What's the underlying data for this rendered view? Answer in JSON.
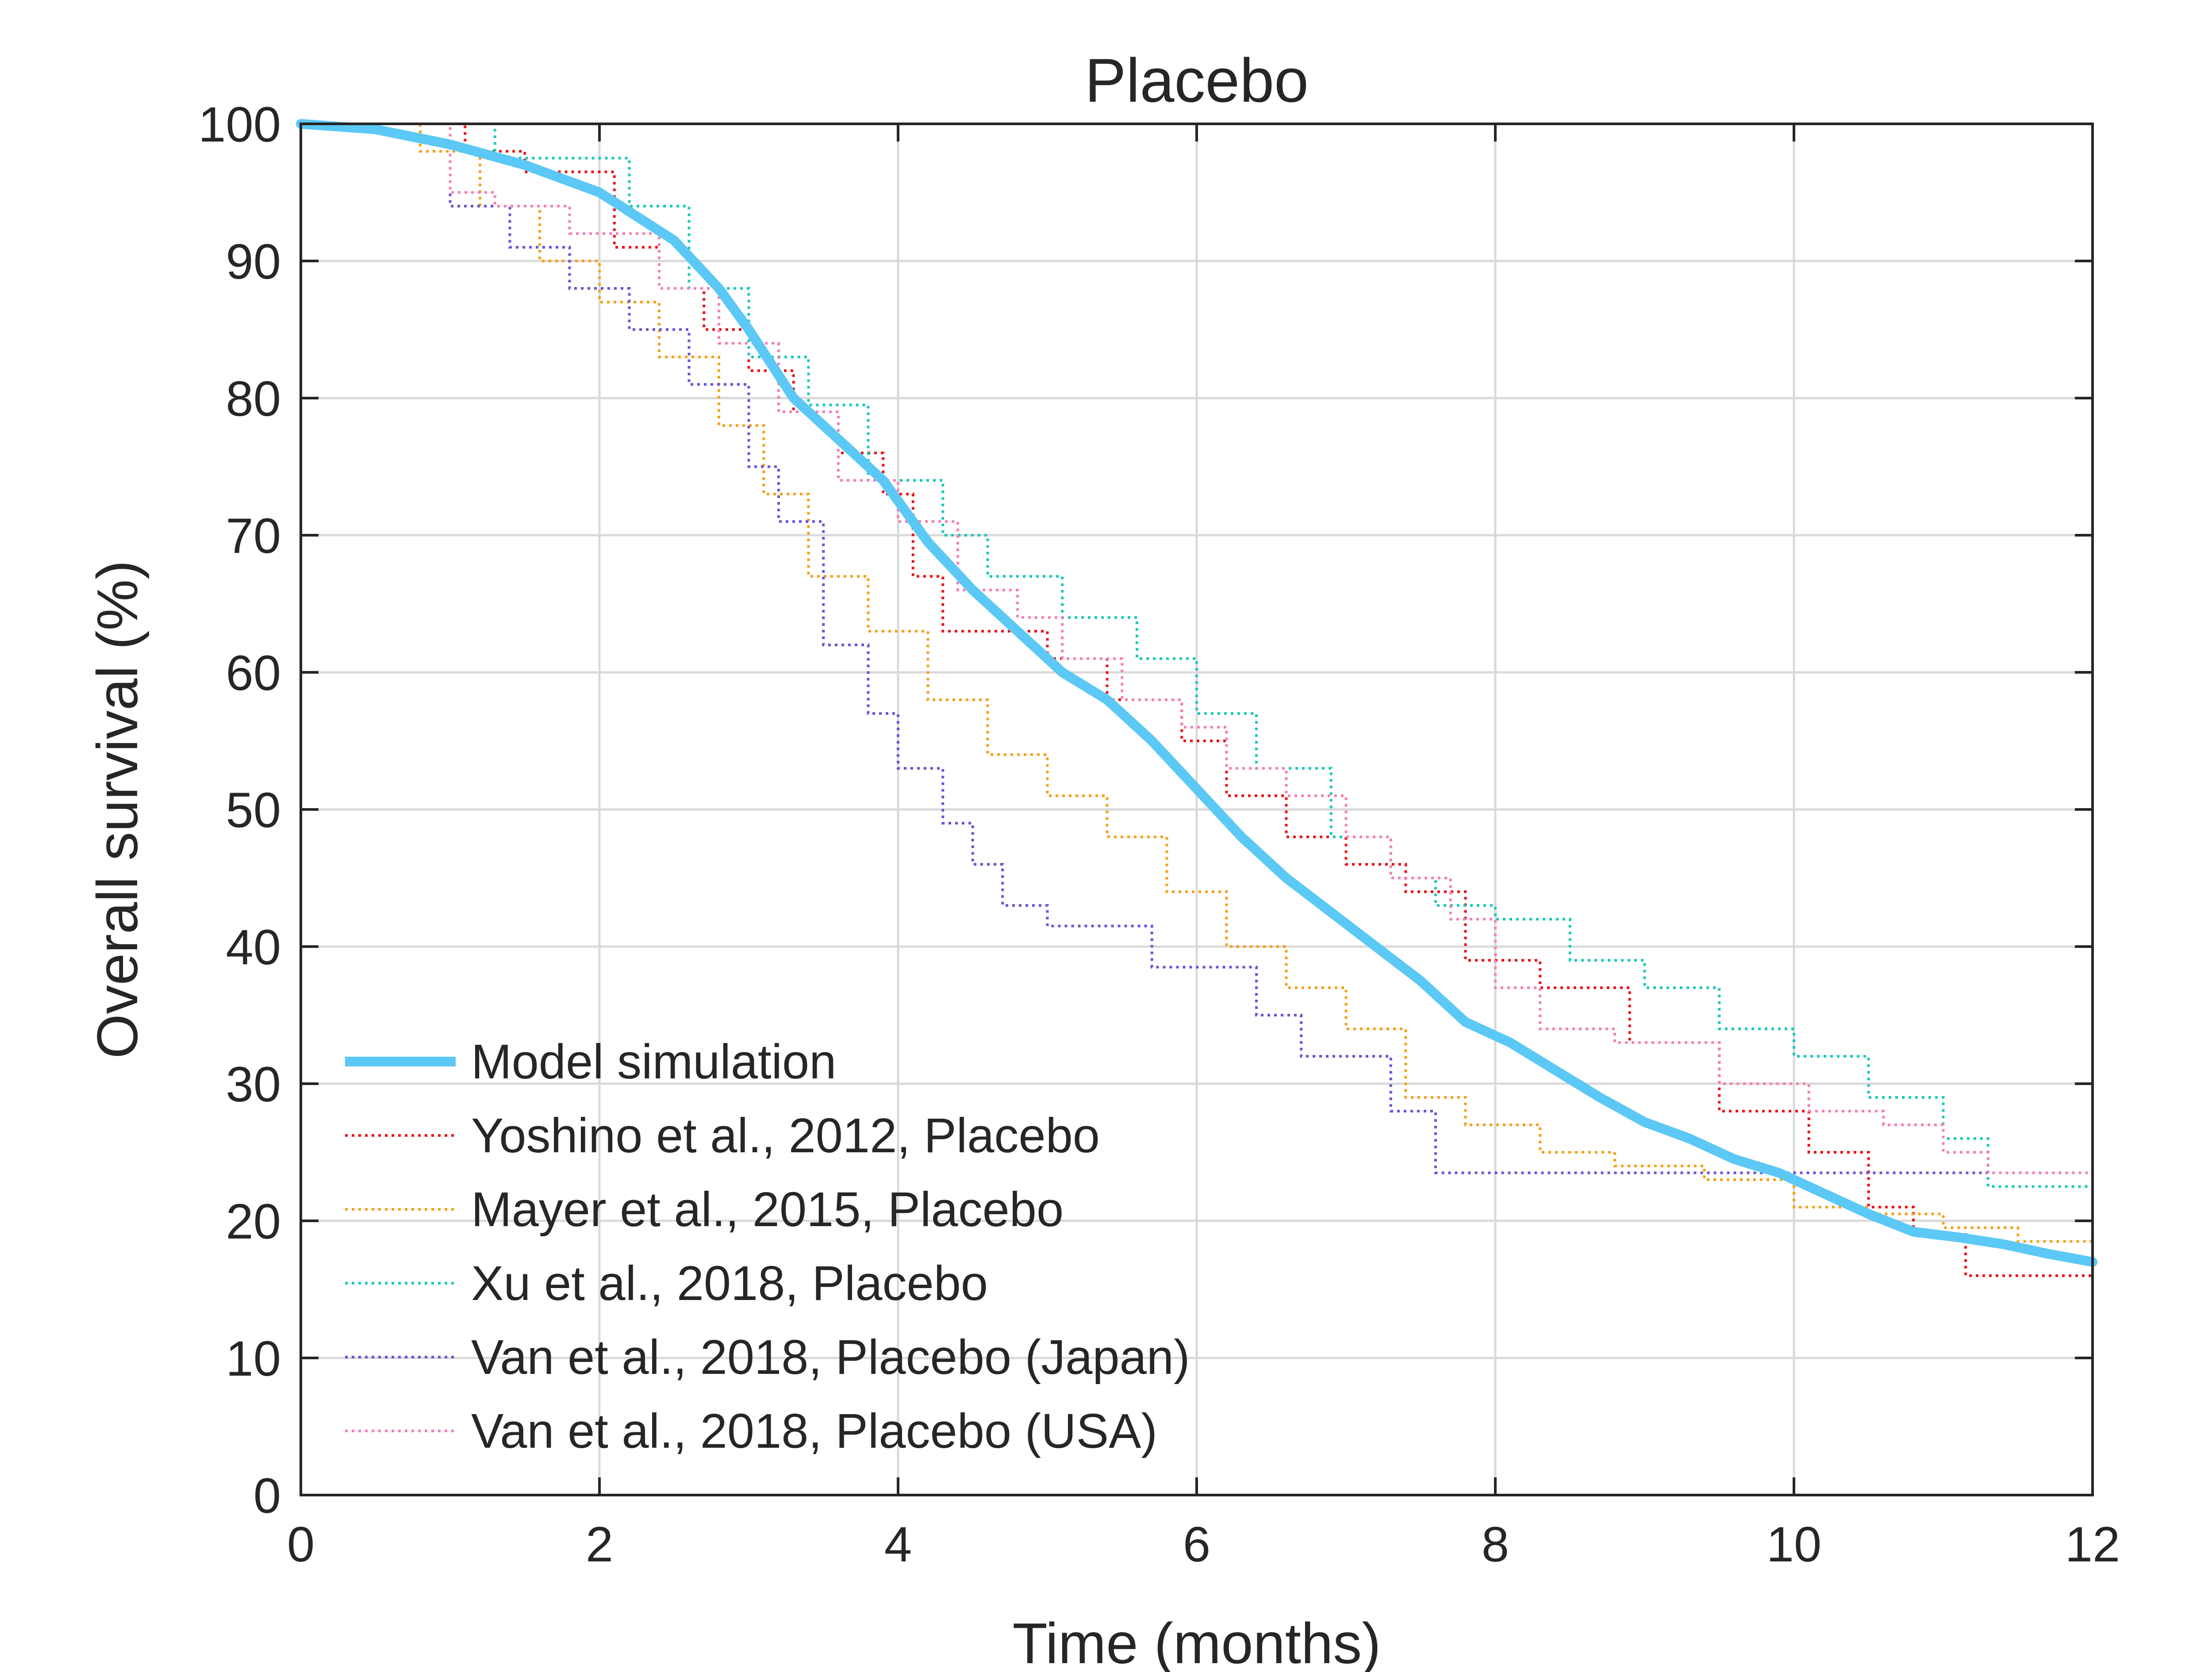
{
  "chart_data": {
    "type": "line",
    "title": "Placebo",
    "xlabel": "Time (months)",
    "ylabel": "Overall survival (%)",
    "xlim": [
      0,
      12
    ],
    "ylim": [
      0,
      100
    ],
    "x_ticks": [
      0,
      2,
      4,
      6,
      8,
      10,
      12
    ],
    "y_ticks": [
      0,
      10,
      20,
      30,
      40,
      50,
      60,
      70,
      80,
      90,
      100
    ],
    "grid": true,
    "legend_position": "bottom-left",
    "series": [
      {
        "name": "Model simulation",
        "color": "#5BC8F5",
        "style": "solid-thick",
        "x": [
          0,
          0.5,
          1.0,
          1.5,
          2.0,
          2.5,
          2.8,
          3.0,
          3.3,
          3.6,
          3.9,
          4.2,
          4.5,
          4.8,
          5.1,
          5.4,
          5.7,
          6.0,
          6.3,
          6.6,
          6.9,
          7.2,
          7.5,
          7.8,
          8.1,
          8.4,
          8.7,
          9.0,
          9.3,
          9.6,
          9.9,
          10.2,
          10.5,
          10.8,
          11.1,
          11.4,
          11.7,
          12.0
        ],
        "y": [
          100,
          99.6,
          98.5,
          97,
          95,
          91.5,
          88,
          85,
          80,
          77,
          74,
          69.5,
          66,
          63,
          60,
          58,
          55,
          51.5,
          48,
          45,
          42.5,
          40,
          37.5,
          34.5,
          33,
          31,
          29,
          27.2,
          26,
          24.5,
          23.5,
          22,
          20.5,
          19.2,
          18.8,
          18.3,
          17.6,
          17
        ]
      },
      {
        "name": "Yoshino et al., 2012, Placebo",
        "color": "#E8161B",
        "style": "dotted-step",
        "x": [
          0,
          1.1,
          1.5,
          2.1,
          2.4,
          2.7,
          3.0,
          3.3,
          3.6,
          3.9,
          4.1,
          4.3,
          4.6,
          5.0,
          5.4,
          5.9,
          6.2,
          6.6,
          7.0,
          7.4,
          7.8,
          8.3,
          8.9,
          9.5,
          10.1,
          10.5,
          10.8,
          11.15,
          12.0
        ],
        "y": [
          100,
          98,
          96.5,
          91,
          88,
          85,
          82,
          79,
          76,
          73,
          67,
          63,
          63,
          61,
          58,
          55,
          51,
          48,
          46,
          44,
          39,
          37,
          33,
          28,
          25,
          21,
          19,
          16,
          16
        ]
      },
      {
        "name": "Mayer et al., 2015, Placebo",
        "color": "#F5A11B",
        "style": "dotted-step",
        "x": [
          0,
          0.8,
          1.2,
          1.6,
          2.0,
          2.4,
          2.8,
          3.1,
          3.4,
          3.8,
          4.2,
          4.6,
          5.0,
          5.4,
          5.8,
          6.2,
          6.6,
          7.0,
          7.4,
          7.8,
          8.3,
          8.8,
          9.4,
          10.0,
          10.5,
          11.0,
          11.5,
          12.0
        ],
        "y": [
          100,
          98,
          94,
          90,
          87,
          83,
          78,
          73,
          67,
          63,
          58,
          54,
          51,
          48,
          44,
          40,
          37,
          34,
          29,
          27,
          25,
          24,
          23,
          21,
          20.5,
          19.5,
          18.5,
          17.5
        ]
      },
      {
        "name": "Xu et al., 2018, Placebo",
        "color": "#1CC9B9",
        "style": "dotted-step",
        "x": [
          0,
          1.3,
          2.2,
          2.6,
          3.0,
          3.4,
          3.8,
          4.3,
          4.6,
          5.1,
          5.6,
          6.0,
          6.4,
          6.9,
          7.3,
          7.6,
          8.0,
          8.5,
          9.0,
          9.5,
          10.0,
          10.5,
          11.0,
          11.3,
          12.0
        ],
        "y": [
          100,
          97.5,
          94,
          88,
          83,
          79.5,
          74,
          70,
          67,
          64,
          61,
          57,
          53,
          48,
          45,
          43,
          42,
          39,
          37,
          34,
          32,
          29,
          26,
          22.5,
          22.5
        ]
      },
      {
        "name": "Van et al., 2018, Placebo (Japan)",
        "color": "#6A55D8",
        "style": "dotted-step",
        "x": [
          0,
          1.0,
          1.4,
          1.8,
          2.2,
          2.6,
          3.0,
          3.2,
          3.5,
          3.8,
          4.0,
          4.3,
          4.5,
          4.7,
          5.0,
          5.7,
          6.4,
          6.7,
          7.3,
          7.6,
          11.5,
          12.0
        ],
        "y": [
          100,
          94,
          91,
          88,
          85,
          81,
          75,
          71,
          62,
          57,
          53,
          49,
          46,
          43,
          41.5,
          38.5,
          35,
          32,
          28,
          23.5,
          23.5,
          23.5
        ]
      },
      {
        "name": "Van et al., 2018, Placebo (USA)",
        "color": "#F580B5",
        "style": "dotted-step",
        "x": [
          0,
          1.0,
          1.3,
          1.8,
          2.4,
          2.8,
          3.2,
          3.6,
          4.0,
          4.4,
          4.8,
          5.1,
          5.5,
          5.9,
          6.2,
          6.6,
          7.0,
          7.3,
          7.7,
          8.0,
          8.3,
          8.8,
          9.5,
          10.1,
          10.6,
          11.0,
          11.3,
          12.0
        ],
        "y": [
          100,
          95,
          94,
          92,
          88,
          84,
          79,
          74,
          71,
          66,
          64,
          61,
          58,
          56,
          53,
          51,
          48,
          45,
          42,
          37,
          34,
          33,
          30,
          28,
          27,
          25,
          23.5,
          23.5
        ]
      }
    ]
  }
}
